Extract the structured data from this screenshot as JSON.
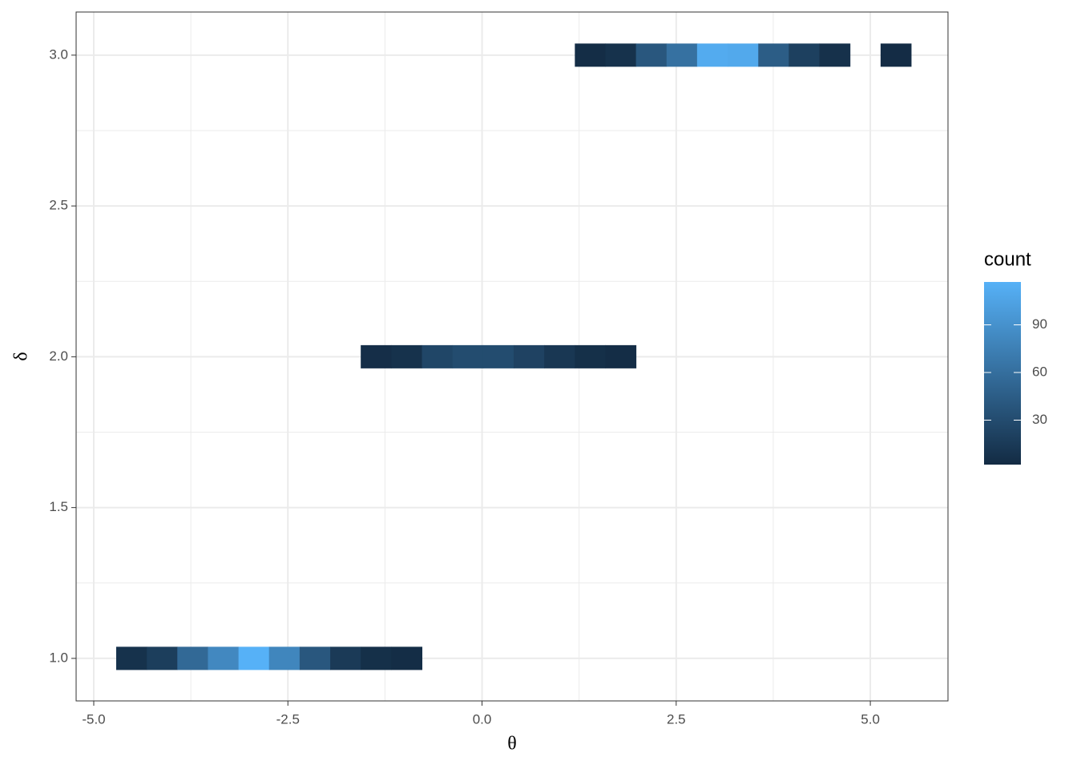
{
  "chart_data": {
    "type": "bin2d",
    "x_label": "θ",
    "y_label": "δ",
    "legend_title": "count",
    "bins": [
      -4.711,
      -4.317,
      -3.924,
      -3.53,
      -3.136,
      -2.743,
      -2.349,
      -1.955,
      -1.562,
      -1.168,
      -0.774,
      -0.38,
      0.013,
      0.407,
      0.801,
      1.195,
      1.588,
      1.982,
      2.376,
      2.769,
      3.163,
      3.557,
      3.95,
      4.344,
      4.738,
      5.132,
      5.525
    ],
    "y_binwidth": 0.077,
    "rows": [
      {
        "y": 1,
        "counts": [
          8,
          18,
          55,
          82,
          117,
          80,
          40,
          15,
          6,
          4,
          null,
          null,
          null,
          null,
          null,
          null,
          null,
          null,
          null,
          null,
          null,
          null,
          null,
          null,
          null,
          null
        ]
      },
      {
        "y": 2,
        "counts": [
          null,
          null,
          null,
          null,
          null,
          null,
          null,
          null,
          5,
          8,
          25,
          30,
          30,
          22,
          12,
          6,
          4,
          null,
          null,
          null,
          null,
          null,
          null,
          null,
          null,
          null
        ]
      },
      {
        "y": 3,
        "counts": [
          null,
          null,
          null,
          null,
          null,
          null,
          null,
          null,
          null,
          null,
          null,
          null,
          null,
          null,
          null,
          4,
          8,
          40,
          62,
          112,
          110,
          45,
          20,
          7,
          null,
          3
        ]
      }
    ],
    "xlim": [
      -5.227,
      6.0
    ],
    "ylim": [
      0.859,
      3.143
    ],
    "xticks": [
      {
        "value": -5,
        "label": "-5.0"
      },
      {
        "value": -2.5,
        "label": "-2.5"
      },
      {
        "value": 0,
        "label": "0.0"
      },
      2.5,
      {
        "value": 5,
        "label": "5.0"
      }
    ],
    "yticks": [
      {
        "value": 1,
        "label": "1.0"
      },
      1.5,
      {
        "value": 2,
        "label": "2.0"
      },
      2.5,
      {
        "value": 3,
        "label": "3.0"
      }
    ],
    "clim": [
      2,
      117
    ],
    "cticks": [
      30,
      60,
      90
    ],
    "colors": [
      "#132B43",
      "#56B1F7"
    ],
    "grid": true
  }
}
